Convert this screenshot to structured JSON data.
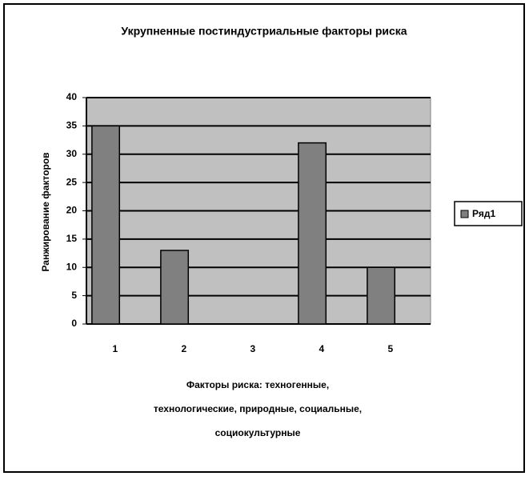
{
  "chart_data": {
    "type": "bar",
    "title": "Укрупненные постиндустриальные факторы риска",
    "ylabel": "Ранжирование факторов",
    "xlabel": [
      "Факторы риска: техногенные,",
      "технологические, природные, социальные,",
      "социокультурные"
    ],
    "categories": [
      "1",
      "2",
      "3",
      "4",
      "5"
    ],
    "series": [
      {
        "name": "Ряд1",
        "color": "#808080",
        "values": [
          35,
          13,
          0,
          32,
          10
        ]
      }
    ],
    "ylim": [
      0,
      40
    ],
    "yticks": [
      0,
      5,
      10,
      15,
      20,
      25,
      30,
      35,
      40
    ],
    "grid": true,
    "legend": "right"
  }
}
